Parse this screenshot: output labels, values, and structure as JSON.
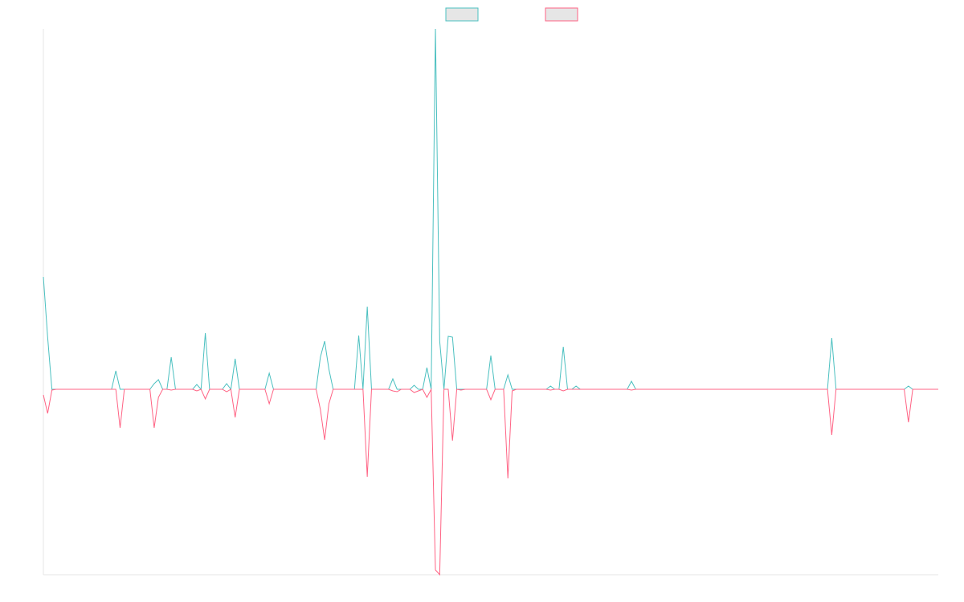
{
  "chart_data": {
    "type": "line",
    "ylim": [
      -231,
      449
    ],
    "legend": "top",
    "series": [
      {
        "color": "#4bc0c0",
        "values": [
          140,
          65,
          0,
          0,
          0,
          0,
          0,
          0,
          0,
          0,
          0,
          0,
          0,
          0,
          0,
          0,
          0,
          23,
          0,
          0,
          0,
          0,
          0,
          0,
          0,
          0,
          7,
          12,
          0,
          0,
          40,
          0,
          0,
          0,
          0,
          0,
          6,
          0,
          70,
          0,
          0,
          0,
          0,
          7,
          0,
          38,
          0,
          0,
          0,
          0,
          0,
          0,
          0,
          20,
          0,
          0,
          0,
          0,
          0,
          0,
          0,
          0,
          0,
          0,
          0,
          40,
          60,
          25,
          0,
          0,
          0,
          0,
          0,
          0,
          67,
          0,
          103,
          0,
          0,
          0,
          0,
          0,
          13,
          0,
          0,
          0,
          0,
          5,
          0,
          0,
          27,
          0,
          449,
          60,
          0,
          66,
          65,
          0,
          0,
          0,
          0,
          0,
          0,
          0,
          0,
          42,
          0,
          0,
          0,
          18,
          0,
          0,
          0,
          0,
          0,
          0,
          0,
          0,
          0,
          4,
          0,
          0,
          53,
          0,
          0,
          4,
          0,
          0,
          0,
          0,
          0,
          0,
          0,
          0,
          0,
          0,
          0,
          0,
          10,
          0,
          0,
          0,
          0,
          0,
          0,
          0,
          0,
          0,
          0,
          0,
          0,
          0,
          0,
          0,
          0,
          0,
          0,
          0,
          0,
          0,
          0,
          0,
          0,
          0,
          0,
          0,
          0,
          0,
          0,
          0,
          0,
          0,
          0,
          0,
          0,
          0,
          0,
          0,
          0,
          0,
          0,
          0,
          0,
          0,
          0,
          64,
          0,
          0,
          0,
          0,
          0,
          0,
          0,
          0,
          0,
          0,
          0,
          0,
          0,
          0,
          0,
          0,
          0,
          4,
          0,
          0,
          0,
          0,
          0,
          0,
          0
        ]
      },
      {
        "color": "#ff6384",
        "values": [
          -7,
          -30,
          -1,
          0,
          0,
          0,
          0,
          0,
          0,
          0,
          0,
          0,
          0,
          0,
          0,
          0,
          0,
          0,
          -48,
          0,
          0,
          0,
          0,
          0,
          0,
          0,
          -48,
          -10,
          0,
          0,
          -1,
          0,
          0,
          0,
          0,
          0,
          -2,
          0,
          -12,
          0,
          0,
          0,
          0,
          -3,
          0,
          -35,
          0,
          0,
          0,
          0,
          0,
          0,
          0,
          -18,
          0,
          0,
          0,
          0,
          0,
          0,
          0,
          0,
          0,
          0,
          0,
          -25,
          -63,
          -18,
          0,
          0,
          0,
          0,
          0,
          0,
          0,
          0,
          -109,
          0,
          0,
          0,
          0,
          0,
          -2,
          -3,
          0,
          0,
          0,
          -4,
          -2,
          0,
          -10,
          0,
          -225,
          -231,
          0,
          0,
          -64,
          0,
          -1,
          0,
          0,
          0,
          0,
          0,
          0,
          -13,
          0,
          0,
          0,
          -111,
          -2,
          0,
          0,
          0,
          0,
          0,
          0,
          0,
          0,
          -1,
          0,
          0,
          -2,
          0,
          0,
          0,
          0,
          0,
          0,
          0,
          0,
          0,
          0,
          0,
          0,
          0,
          0,
          0,
          -1,
          0,
          0,
          0,
          0,
          0,
          0,
          0,
          0,
          0,
          0,
          0,
          0,
          0,
          0,
          0,
          0,
          0,
          0,
          0,
          0,
          0,
          0,
          0,
          0,
          0,
          0,
          0,
          0,
          0,
          0,
          0,
          0,
          0,
          0,
          0,
          0,
          0,
          0,
          0,
          0,
          0,
          0,
          0,
          0,
          0,
          0,
          -57,
          0,
          0,
          0,
          0,
          0,
          0,
          0,
          0,
          0,
          0,
          0,
          0,
          0,
          0,
          0,
          0,
          0,
          -41,
          0,
          0,
          0,
          0,
          0,
          0,
          0
        ]
      }
    ]
  }
}
